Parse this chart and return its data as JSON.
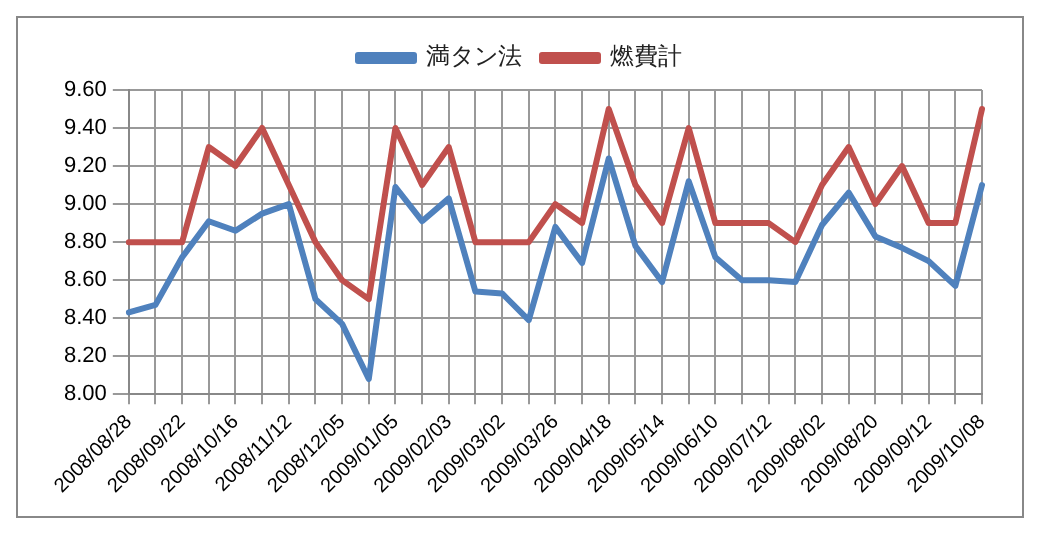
{
  "chart_data": {
    "type": "line",
    "categories": [
      "2008/08/28",
      null,
      "2008/09/22",
      null,
      "2008/10/16",
      null,
      "2008/11/12",
      null,
      "2008/12/05",
      null,
      "2009/01/05",
      null,
      "2009/02/03",
      null,
      "2009/03/02",
      null,
      "2009/03/26",
      null,
      "2009/04/18",
      null,
      "2009/05/14",
      null,
      "2009/06/10",
      null,
      "2009/07/12",
      null,
      "2009/08/02",
      null,
      "2009/08/20",
      null,
      "2009/09/12",
      null,
      "2009/10/08"
    ],
    "series": [
      {
        "name": "満タン法",
        "color": "#4f81bd",
        "values": [
          8.43,
          8.47,
          8.72,
          8.91,
          8.86,
          8.95,
          9.0,
          8.5,
          8.37,
          8.08,
          9.09,
          8.91,
          9.03,
          8.54,
          8.53,
          8.39,
          8.88,
          8.69,
          9.24,
          8.78,
          8.59,
          9.12,
          8.72,
          8.6,
          8.6,
          8.59,
          8.89,
          9.06,
          8.83,
          8.77,
          8.7,
          8.57,
          9.1
        ]
      },
      {
        "name": "燃費計",
        "color": "#c0504d",
        "values": [
          8.8,
          8.8,
          8.8,
          9.3,
          9.2,
          9.4,
          9.1,
          8.8,
          8.6,
          8.5,
          9.4,
          9.1,
          9.3,
          8.8,
          8.8,
          8.8,
          9.0,
          8.9,
          9.5,
          9.1,
          8.9,
          9.4,
          8.9,
          8.9,
          8.9,
          8.8,
          9.1,
          9.3,
          9.0,
          9.2,
          8.9,
          8.9,
          9.5
        ]
      }
    ],
    "ylim": [
      8.0,
      9.6
    ],
    "yticks": [
      {
        "value": 8.0,
        "label": "8.00"
      },
      {
        "value": 8.2,
        "label": "8.20"
      },
      {
        "value": 8.4,
        "label": "8.40"
      },
      {
        "value": 8.6,
        "label": "8.60"
      },
      {
        "value": 8.8,
        "label": "8.80"
      },
      {
        "value": 9.0,
        "label": "9.00"
      },
      {
        "value": 9.2,
        "label": "9.20"
      },
      {
        "value": 9.4,
        "label": "9.40"
      },
      {
        "value": 9.6,
        "label": "9.60"
      }
    ],
    "grid": true,
    "legend": "top",
    "marker": "none",
    "line_style": "solid"
  }
}
